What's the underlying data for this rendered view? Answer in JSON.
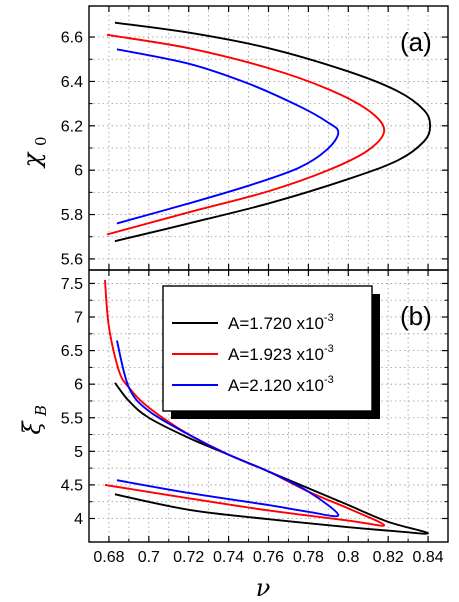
{
  "chart_data": [
    {
      "panel_label": "(a)",
      "type": "line",
      "ylabel": "χ",
      "ylabel_subscript": "0",
      "ylim": [
        5.55,
        6.74
      ],
      "xlim": [
        0.67,
        0.85
      ],
      "yticks": [
        5.6,
        5.8,
        6.0,
        6.2,
        6.4,
        6.6
      ],
      "ytick_labels": [
        "5.6",
        "5.8",
        "6",
        "6.2",
        "6.4",
        "6.6"
      ],
      "grid": true,
      "series": [
        {
          "name": "A=1.720 x10-3",
          "color": "#000000",
          "x": [
            0.683,
            0.72,
            0.76,
            0.8,
            0.825,
            0.838,
            0.841,
            0.838,
            0.825,
            0.8,
            0.76,
            0.72,
            0.683
          ],
          "y": [
            6.665,
            6.62,
            6.55,
            6.445,
            6.355,
            6.27,
            6.2,
            6.13,
            6.045,
            5.96,
            5.85,
            5.76,
            5.68
          ]
        },
        {
          "name": "A=1.923 x10-3",
          "color": "#ff0000",
          "x": [
            0.679,
            0.72,
            0.76,
            0.79,
            0.81,
            0.818,
            0.81,
            0.79,
            0.76,
            0.72,
            0.679
          ],
          "y": [
            6.61,
            6.55,
            6.46,
            6.365,
            6.27,
            6.18,
            6.09,
            6.0,
            5.905,
            5.81,
            5.71
          ]
        },
        {
          "name": "A=2.120 x10-3",
          "color": "#0000ff",
          "x": [
            0.684,
            0.72,
            0.75,
            0.775,
            0.789,
            0.795,
            0.789,
            0.775,
            0.75,
            0.72,
            0.684
          ],
          "y": [
            6.545,
            6.48,
            6.39,
            6.29,
            6.22,
            6.17,
            6.09,
            6.01,
            5.93,
            5.85,
            5.76
          ]
        }
      ]
    },
    {
      "panel_label": "(b)",
      "type": "line",
      "xlabel": "ν",
      "ylabel": "ξ",
      "ylabel_subscript": "B",
      "xlim": [
        0.67,
        0.85
      ],
      "ylim": [
        3.65,
        7.7
      ],
      "xticks": [
        0.68,
        0.7,
        0.72,
        0.74,
        0.76,
        0.78,
        0.8,
        0.82,
        0.84
      ],
      "xtick_labels": [
        "0.68",
        "0.7",
        "0.72",
        "0.74",
        "0.76",
        "0.78",
        "0.8",
        "0.82",
        "0.84"
      ],
      "yticks": [
        4.0,
        4.5,
        5.0,
        5.5,
        6.0,
        6.5,
        7.0,
        7.5
      ],
      "ytick_labels": [
        "4",
        "4.5",
        "5",
        "5.5",
        "6",
        "6.5",
        "7",
        "7.5"
      ],
      "grid": true,
      "legend_position": "top-right",
      "series": [
        {
          "name": "A=1.720 x10-3",
          "color": "#000000",
          "x": [
            0.683,
            0.69,
            0.7,
            0.72,
            0.74,
            0.76,
            0.78,
            0.8,
            0.82,
            0.84,
            0.82,
            0.8,
            0.76,
            0.72,
            0.683
          ],
          "y": [
            6.02,
            5.75,
            5.5,
            5.2,
            4.95,
            4.7,
            4.45,
            4.2,
            3.95,
            3.78,
            3.82,
            3.87,
            3.99,
            4.13,
            4.36
          ]
        },
        {
          "name": "A=1.923 x10-3",
          "color": "#ff0000",
          "x": [
            0.678,
            0.68,
            0.685,
            0.69,
            0.7,
            0.72,
            0.74,
            0.76,
            0.78,
            0.8,
            0.818,
            0.8,
            0.76,
            0.72,
            0.678
          ],
          "y": [
            7.55,
            6.85,
            6.2,
            5.95,
            5.65,
            5.25,
            4.95,
            4.7,
            4.4,
            4.15,
            3.9,
            3.97,
            4.12,
            4.3,
            4.5
          ]
        },
        {
          "name": "A=2.120 x10-3",
          "color": "#0000ff",
          "x": [
            0.684,
            0.69,
            0.7,
            0.72,
            0.74,
            0.76,
            0.78,
            0.795,
            0.78,
            0.76,
            0.72,
            0.684
          ],
          "y": [
            6.65,
            5.95,
            5.6,
            5.25,
            4.95,
            4.7,
            4.4,
            4.05,
            4.1,
            4.2,
            4.38,
            4.57
          ]
        }
      ]
    }
  ],
  "legend": {
    "entries": [
      {
        "base": "A=1.720 x10",
        "exp": "-3",
        "color": "#000000"
      },
      {
        "base": "A=1.923 x10",
        "exp": "-3",
        "color": "#ff0000"
      },
      {
        "base": "A=2.120 x10",
        "exp": "-3",
        "color": "#0000ff"
      }
    ]
  }
}
